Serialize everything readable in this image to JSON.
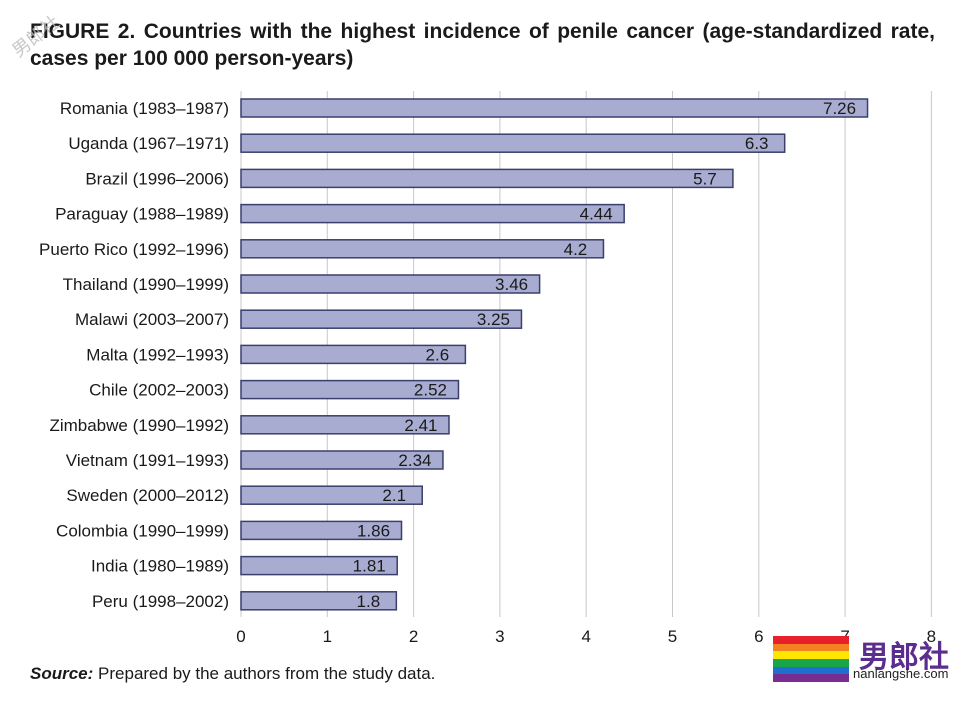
{
  "figure": {
    "title": "FIGURE 2. Countries with the highest incidence of penile cancer (age-standardized rate, cases per 100 000 person-years)",
    "source_label": "Source:",
    "source_text": "Prepared by the authors from the study data."
  },
  "chart_data": {
    "type": "bar",
    "orientation": "horizontal",
    "title": "FIGURE 2. Countries with the highest incidence of penile cancer (age-standardized rate, cases per 100 000 person-years)",
    "xlabel": "",
    "ylabel": "",
    "xlim": [
      0,
      8
    ],
    "xticks": [
      0,
      1,
      2,
      3,
      4,
      5,
      6,
      7,
      8
    ],
    "grid": true,
    "categories": [
      "Romania (1983–1987)",
      "Uganda (1967–1971)",
      "Brazil (1996–2006)",
      "Paraguay (1988–1989)",
      "Puerto Rico (1992–1996)",
      "Thailand (1990–1999)",
      "Malawi (2003–2007)",
      "Malta (1992–1993)",
      "Chile (2002–2003)",
      "Zimbabwe (1990–1992)",
      "Vietnam (1991–1993)",
      "Sweden (2000–2012)",
      "Colombia (1990–1999)",
      "India (1980–1989)",
      "Peru (1998–2002)"
    ],
    "values": [
      7.26,
      6.3,
      5.7,
      4.44,
      4.2,
      3.46,
      3.25,
      2.6,
      2.52,
      2.41,
      2.34,
      2.1,
      1.86,
      1.81,
      1.8
    ],
    "value_labels": [
      "7.26",
      "6.3",
      "5.7",
      "4.44",
      "4.2",
      "3.46",
      "3.25",
      "2.6",
      "2.52",
      "2.41",
      "2.34",
      "2.1",
      "1.86",
      "1.81",
      "1.8"
    ]
  },
  "colors": {
    "bar_fill": "#a9acd1",
    "bar_stroke": "#3a3f6b",
    "grid": "#c8c8c8",
    "text": "#1a1a1a"
  },
  "watermark": {
    "logo_text": "男郎社",
    "logo_domain": "nanlangshe.com",
    "corner_text": "男郎社",
    "flag_colors": [
      "#e8202a",
      "#f58220",
      "#ffe600",
      "#19a54a",
      "#1f6fd1",
      "#7a2d91"
    ]
  }
}
